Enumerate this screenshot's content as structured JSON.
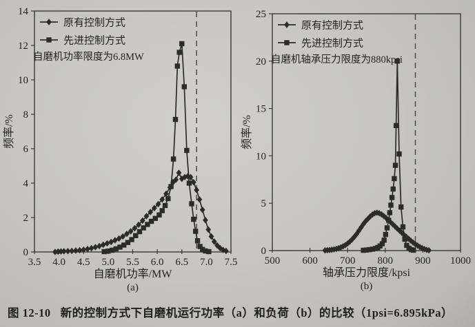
{
  "page": {
    "figure_number": "图 12-10",
    "caption": "新的控制方式下自磨机运行功率（a）和负荷（b）的比较（1psi=6.895kPa）"
  },
  "colors": {
    "ink": "#2d2b28",
    "frame": "#3a3836",
    "text": "#242220",
    "dash": "#4c4a46",
    "paper": "#c9c6c1"
  },
  "chart_data": [
    {
      "id": "a",
      "type": "line",
      "sublabel": "(a)",
      "xlabel": "自磨机功率/MW",
      "ylabel": "频率/%",
      "xlim": [
        3.5,
        7.5
      ],
      "ylim": [
        0,
        14
      ],
      "xticks": [
        3.5,
        4.0,
        4.5,
        5.0,
        5.5,
        6.0,
        6.5,
        7.0,
        7.5
      ],
      "xtick_labels": [
        "3.5",
        "4.0",
        "4.5",
        "5.0",
        "5.5",
        "6.0",
        "6.5",
        "7.0",
        "7.5"
      ],
      "yticks": [
        0,
        2,
        4,
        6,
        8,
        10,
        12,
        14
      ],
      "ytick_labels": [
        "0",
        "2",
        "4",
        "6",
        "8",
        "10",
        "12",
        "14"
      ],
      "grid": false,
      "legend_position": "top-left",
      "annotation": "自磨机功率限度为6.8MW",
      "limit_line_x": 6.8,
      "series": [
        {
          "name": "原有控制方式",
          "marker": "diamond",
          "points": [
            [
              3.92,
              0
            ],
            [
              3.98,
              0.02
            ],
            [
              4.04,
              0.03
            ],
            [
              4.1,
              0.04
            ],
            [
              4.18,
              0.05
            ],
            [
              4.26,
              0.06
            ],
            [
              4.34,
              0.08
            ],
            [
              4.42,
              0.1
            ],
            [
              4.5,
              0.13
            ],
            [
              4.58,
              0.17
            ],
            [
              4.66,
              0.22
            ],
            [
              4.74,
              0.28
            ],
            [
              4.82,
              0.34
            ],
            [
              4.9,
              0.42
            ],
            [
              4.98,
              0.5
            ],
            [
              5.06,
              0.58
            ],
            [
              5.14,
              0.68
            ],
            [
              5.22,
              0.78
            ],
            [
              5.3,
              0.9
            ],
            [
              5.38,
              1.05
            ],
            [
              5.46,
              1.2
            ],
            [
              5.54,
              1.38
            ],
            [
              5.62,
              1.58
            ],
            [
              5.7,
              1.82
            ],
            [
              5.78,
              2.08
            ],
            [
              5.86,
              2.32
            ],
            [
              5.94,
              2.55
            ],
            [
              6.02,
              2.78
            ],
            [
              6.1,
              3.05
            ],
            [
              6.18,
              3.38
            ],
            [
              6.26,
              3.75
            ],
            [
              6.32,
              4.05
            ],
            [
              6.38,
              4.2
            ],
            [
              6.44,
              4.6
            ],
            [
              6.5,
              4.25
            ],
            [
              6.56,
              4.35
            ],
            [
              6.62,
              4.4
            ],
            [
              6.68,
              4.35
            ],
            [
              6.74,
              4.05
            ],
            [
              6.8,
              3.6
            ],
            [
              6.86,
              3.05
            ],
            [
              6.92,
              2.45
            ],
            [
              6.98,
              1.85
            ],
            [
              7.04,
              1.3
            ],
            [
              7.1,
              0.9
            ],
            [
              7.16,
              0.6
            ],
            [
              7.22,
              0.38
            ],
            [
              7.28,
              0.22
            ],
            [
              7.34,
              0.12
            ],
            [
              7.4,
              0.06
            ]
          ]
        },
        {
          "name": "先进控制方式",
          "marker": "square",
          "points": [
            [
              4.92,
              0.02
            ],
            [
              5.0,
              0.05
            ],
            [
              5.08,
              0.1
            ],
            [
              5.16,
              0.18
            ],
            [
              5.24,
              0.28
            ],
            [
              5.32,
              0.4
            ],
            [
              5.4,
              0.55
            ],
            [
              5.48,
              0.72
            ],
            [
              5.56,
              0.95
            ],
            [
              5.64,
              1.18
            ],
            [
              5.72,
              1.4
            ],
            [
              5.8,
              1.6
            ],
            [
              5.88,
              1.78
            ],
            [
              5.96,
              1.95
            ],
            [
              6.04,
              2.15
            ],
            [
              6.1,
              2.4
            ],
            [
              6.16,
              2.7
            ],
            [
              6.22,
              3.1
            ],
            [
              6.28,
              3.8
            ],
            [
              6.33,
              5.4
            ],
            [
              6.37,
              7.7
            ],
            [
              6.41,
              10.8
            ],
            [
              6.45,
              11.6
            ],
            [
              6.5,
              12.1
            ],
            [
              6.55,
              9.6
            ],
            [
              6.6,
              5.9
            ],
            [
              6.65,
              4.0
            ],
            [
              6.7,
              2.8
            ],
            [
              6.74,
              1.9
            ],
            [
              6.78,
              1.2
            ],
            [
              6.82,
              0.65
            ],
            [
              6.87,
              0.32
            ],
            [
              6.92,
              0.15
            ],
            [
              6.98,
              0.06
            ],
            [
              7.05,
              0.02
            ]
          ]
        }
      ]
    },
    {
      "id": "b",
      "type": "line",
      "sublabel": "(b)",
      "xlabel": "轴承压力限度/kpsi",
      "ylabel": "频率/%",
      "xlim": [
        500,
        1000
      ],
      "ylim": [
        0,
        25
      ],
      "xticks": [
        500,
        600,
        700,
        800,
        900,
        1000
      ],
      "xtick_labels": [
        "500",
        "600",
        "700",
        "800",
        "900",
        "1000"
      ],
      "yticks": [
        0,
        5,
        10,
        15,
        20,
        25
      ],
      "ytick_labels": [
        "0",
        "5",
        "10",
        "15",
        "20",
        "25"
      ],
      "grid": false,
      "legend_position": "top-left",
      "annotation": "自磨机轴承压力限度为880kpsi",
      "limit_line_x": 880,
      "series": [
        {
          "name": "原有控制方式",
          "marker": "diamond",
          "points": [
            [
              640,
              0.02
            ],
            [
              646,
              0.04
            ],
            [
              652,
              0.06
            ],
            [
              658,
              0.09
            ],
            [
              664,
              0.13
            ],
            [
              670,
              0.18
            ],
            [
              676,
              0.25
            ],
            [
              682,
              0.34
            ],
            [
              688,
              0.45
            ],
            [
              694,
              0.58
            ],
            [
              700,
              0.75
            ],
            [
              706,
              0.95
            ],
            [
              712,
              1.18
            ],
            [
              718,
              1.45
            ],
            [
              724,
              1.75
            ],
            [
              730,
              2.1
            ],
            [
              736,
              2.45
            ],
            [
              742,
              2.8
            ],
            [
              748,
              3.1
            ],
            [
              754,
              3.35
            ],
            [
              760,
              3.6
            ],
            [
              766,
              3.8
            ],
            [
              772,
              3.95
            ],
            [
              778,
              4.0
            ],
            [
              784,
              3.95
            ],
            [
              790,
              3.82
            ],
            [
              796,
              3.65
            ],
            [
              802,
              3.45
            ],
            [
              808,
              3.22
            ],
            [
              814,
              3.0
            ],
            [
              820,
              2.78
            ],
            [
              826,
              2.55
            ],
            [
              832,
              2.32
            ],
            [
              838,
              2.1
            ],
            [
              844,
              1.88
            ],
            [
              850,
              1.65
            ],
            [
              856,
              1.45
            ],
            [
              862,
              1.25
            ],
            [
              868,
              1.05
            ],
            [
              874,
              0.85
            ],
            [
              880,
              0.68
            ],
            [
              886,
              0.52
            ],
            [
              892,
              0.38
            ],
            [
              898,
              0.26
            ],
            [
              904,
              0.16
            ],
            [
              910,
              0.08
            ],
            [
              916,
              0.03
            ]
          ]
        },
        {
          "name": "先进控制方式",
          "marker": "square",
          "points": [
            [
              742,
              0.03
            ],
            [
              750,
              0.06
            ],
            [
              758,
              0.1
            ],
            [
              766,
              0.15
            ],
            [
              774,
              0.22
            ],
            [
              780,
              0.32
            ],
            [
              786,
              0.48
            ],
            [
              792,
              0.72
            ],
            [
              797,
              1.1
            ],
            [
              801,
              1.7
            ],
            [
              805,
              2.4
            ],
            [
              809,
              3.2
            ],
            [
              812,
              4.0
            ],
            [
              815,
              4.8
            ],
            [
              818,
              5.6
            ],
            [
              821,
              6.5
            ],
            [
              824,
              7.6
            ],
            [
              827,
              9.0
            ],
            [
              829,
              13.2
            ],
            [
              832,
              20.0
            ],
            [
              837,
              10.2
            ],
            [
              842,
              4.6
            ],
            [
              847,
              2.5
            ],
            [
              852,
              1.2
            ],
            [
              857,
              0.55
            ],
            [
              863,
              0.25
            ],
            [
              869,
              0.1
            ],
            [
              875,
              0.04
            ]
          ]
        }
      ]
    }
  ]
}
